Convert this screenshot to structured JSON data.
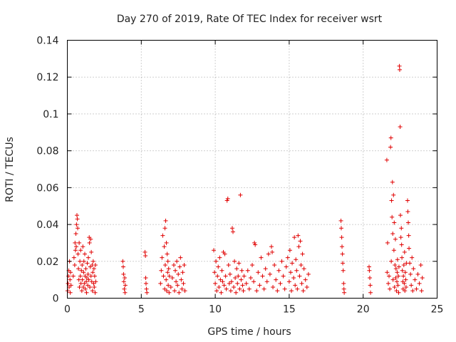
{
  "chart_data": {
    "type": "scatter",
    "title": "Day 270 of 2019, Rate Of TEC Index for receiver wsrt",
    "xlabel": "GPS time / hours",
    "ylabel": "ROTI / TECUs",
    "xlim": [
      0,
      25
    ],
    "ylim": [
      0,
      0.14
    ],
    "xticks": [
      "0",
      "5",
      "10",
      "15",
      "20",
      "25"
    ],
    "yticks": [
      "0",
      "0.02",
      "0.04",
      "0.06",
      "0.08",
      "0.1",
      "0.12",
      "0.14"
    ],
    "grid": true,
    "marker": "+",
    "color": "#e00000",
    "series": [
      {
        "name": "ROTI",
        "points": [
          [
            0.02,
            0.004
          ],
          [
            0.05,
            0.008
          ],
          [
            0.08,
            0.012
          ],
          [
            0.1,
            0.015
          ],
          [
            0.12,
            0.006
          ],
          [
            0.15,
            0.02
          ],
          [
            0.18,
            0.01
          ],
          [
            0.2,
            0.003
          ],
          [
            0.22,
            0.014
          ],
          [
            0.25,
            0.007
          ],
          [
            0.4,
            0.012
          ],
          [
            0.45,
            0.022
          ],
          [
            0.5,
            0.018
          ],
          [
            0.52,
            0.03
          ],
          [
            0.55,
            0.026
          ],
          [
            0.58,
            0.035
          ],
          [
            0.6,
            0.028
          ],
          [
            0.62,
            0.04
          ],
          [
            0.65,
            0.045
          ],
          [
            0.68,
            0.043
          ],
          [
            0.7,
            0.038
          ],
          [
            0.72,
            0.024
          ],
          [
            0.75,
            0.016
          ],
          [
            0.78,
            0.01
          ],
          [
            0.8,
            0.03
          ],
          [
            0.82,
            0.006
          ],
          [
            0.85,
            0.02
          ],
          [
            0.88,
            0.012
          ],
          [
            0.9,
            0.026
          ],
          [
            0.92,
            0.008
          ],
          [
            0.95,
            0.015
          ],
          [
            0.98,
            0.004
          ],
          [
            1.0,
            0.018
          ],
          [
            1.02,
            0.01
          ],
          [
            1.05,
            0.028
          ],
          [
            1.08,
            0.006
          ],
          [
            1.1,
            0.014
          ],
          [
            1.12,
            0.02
          ],
          [
            1.15,
            0.008
          ],
          [
            1.18,
            0.024
          ],
          [
            1.2,
            0.012
          ],
          [
            1.22,
            0.005
          ],
          [
            1.25,
            0.016
          ],
          [
            1.28,
            0.009
          ],
          [
            1.3,
            0.003
          ],
          [
            1.32,
            0.011
          ],
          [
            1.35,
            0.019
          ],
          [
            1.38,
            0.007
          ],
          [
            1.4,
            0.013
          ],
          [
            1.42,
            0.022
          ],
          [
            1.45,
            0.01
          ],
          [
            1.48,
            0.033
          ],
          [
            1.5,
            0.03
          ],
          [
            1.52,
            0.006
          ],
          [
            1.55,
            0.017
          ],
          [
            1.58,
            0.032
          ],
          [
            1.6,
            0.012
          ],
          [
            1.62,
            0.025
          ],
          [
            1.65,
            0.009
          ],
          [
            1.68,
            0.018
          ],
          [
            1.7,
            0.004
          ],
          [
            1.72,
            0.014
          ],
          [
            1.75,
            0.02
          ],
          [
            1.78,
            0.008
          ],
          [
            1.8,
            0.016
          ],
          [
            1.82,
            0.006
          ],
          [
            1.85,
            0.012
          ],
          [
            1.88,
            0.003
          ],
          [
            1.9,
            0.018
          ],
          [
            1.92,
            0.009
          ],
          [
            3.75,
            0.02
          ],
          [
            3.78,
            0.017
          ],
          [
            3.8,
            0.013
          ],
          [
            3.82,
            0.009
          ],
          [
            3.85,
            0.005
          ],
          [
            3.88,
            0.011
          ],
          [
            3.9,
            0.003
          ],
          [
            3.92,
            0.007
          ],
          [
            5.25,
            0.025
          ],
          [
            5.28,
            0.023
          ],
          [
            5.3,
            0.011
          ],
          [
            5.32,
            0.008
          ],
          [
            5.35,
            0.005
          ],
          [
            5.38,
            0.003
          ],
          [
            6.3,
            0.008
          ],
          [
            6.35,
            0.015
          ],
          [
            6.4,
            0.022
          ],
          [
            6.45,
            0.034
          ],
          [
            6.5,
            0.012
          ],
          [
            6.55,
            0.028
          ],
          [
            6.58,
            0.005
          ],
          [
            6.6,
            0.038
          ],
          [
            6.62,
            0.018
          ],
          [
            6.65,
            0.042
          ],
          [
            6.68,
            0.01
          ],
          [
            6.7,
            0.03
          ],
          [
            6.72,
            0.004
          ],
          [
            6.75,
            0.024
          ],
          [
            6.78,
            0.014
          ],
          [
            6.8,
            0.02
          ],
          [
            6.82,
            0.007
          ],
          [
            6.85,
            0.016
          ],
          [
            6.88,
            0.003
          ],
          [
            6.9,
            0.012
          ],
          [
            7.0,
            0.006
          ],
          [
            7.1,
            0.011
          ],
          [
            7.2,
            0.018
          ],
          [
            7.25,
            0.004
          ],
          [
            7.3,
            0.015
          ],
          [
            7.35,
            0.009
          ],
          [
            7.4,
            0.02
          ],
          [
            7.45,
            0.007
          ],
          [
            7.5,
            0.013
          ],
          [
            7.55,
            0.003
          ],
          [
            7.6,
            0.017
          ],
          [
            7.65,
            0.022
          ],
          [
            7.7,
            0.01
          ],
          [
            7.75,
            0.005
          ],
          [
            7.8,
            0.014
          ],
          [
            7.85,
            0.008
          ],
          [
            7.9,
            0.018
          ],
          [
            7.95,
            0.004
          ],
          [
            9.9,
            0.026
          ],
          [
            9.95,
            0.014
          ],
          [
            10.0,
            0.008
          ],
          [
            10.05,
            0.02
          ],
          [
            10.1,
            0.004
          ],
          [
            10.15,
            0.012
          ],
          [
            10.2,
            0.017
          ],
          [
            10.25,
            0.006
          ],
          [
            10.3,
            0.022
          ],
          [
            10.35,
            0.01
          ],
          [
            10.4,
            0.003
          ],
          [
            10.45,
            0.015
          ],
          [
            10.5,
            0.009
          ],
          [
            10.55,
            0.025
          ],
          [
            10.6,
            0.007
          ],
          [
            10.65,
            0.024
          ],
          [
            10.7,
            0.012
          ],
          [
            10.75,
            0.005
          ],
          [
            10.8,
            0.053
          ],
          [
            10.85,
            0.054
          ],
          [
            10.9,
            0.018
          ],
          [
            10.95,
            0.008
          ],
          [
            11.0,
            0.013
          ],
          [
            11.05,
            0.004
          ],
          [
            11.1,
            0.009
          ],
          [
            11.15,
            0.038
          ],
          [
            11.2,
            0.036
          ],
          [
            11.25,
            0.006
          ],
          [
            11.3,
            0.02
          ],
          [
            11.35,
            0.011
          ],
          [
            11.4,
            0.003
          ],
          [
            11.45,
            0.016
          ],
          [
            11.5,
            0.008
          ],
          [
            11.55,
            0.012
          ],
          [
            11.6,
            0.019
          ],
          [
            11.65,
            0.005
          ],
          [
            11.7,
            0.056
          ],
          [
            11.75,
            0.01
          ],
          [
            11.8,
            0.015
          ],
          [
            11.85,
            0.007
          ],
          [
            11.9,
            0.004
          ],
          [
            11.95,
            0.012
          ],
          [
            12.1,
            0.008
          ],
          [
            12.2,
            0.015
          ],
          [
            12.3,
            0.005
          ],
          [
            12.4,
            0.011
          ],
          [
            12.5,
            0.018
          ],
          [
            12.6,
            0.009
          ],
          [
            12.65,
            0.03
          ],
          [
            12.7,
            0.029
          ],
          [
            12.8,
            0.004
          ],
          [
            12.9,
            0.014
          ],
          [
            13.0,
            0.007
          ],
          [
            13.1,
            0.022
          ],
          [
            13.2,
            0.012
          ],
          [
            13.3,
            0.005
          ],
          [
            13.4,
            0.016
          ],
          [
            13.5,
            0.009
          ],
          [
            13.6,
            0.024
          ],
          [
            13.7,
            0.013
          ],
          [
            13.8,
            0.028
          ],
          [
            13.85,
            0.025
          ],
          [
            13.9,
            0.006
          ],
          [
            14.0,
            0.018
          ],
          [
            14.1,
            0.01
          ],
          [
            14.2,
            0.004
          ],
          [
            14.3,
            0.015
          ],
          [
            14.4,
            0.008
          ],
          [
            14.5,
            0.02
          ],
          [
            14.6,
            0.012
          ],
          [
            14.7,
            0.005
          ],
          [
            14.8,
            0.017
          ],
          [
            14.9,
            0.022
          ],
          [
            15.0,
            0.009
          ],
          [
            15.05,
            0.026
          ],
          [
            15.1,
            0.014
          ],
          [
            15.15,
            0.004
          ],
          [
            15.2,
            0.019
          ],
          [
            15.3,
            0.011
          ],
          [
            15.35,
            0.033
          ],
          [
            15.4,
            0.007
          ],
          [
            15.45,
            0.021
          ],
          [
            15.5,
            0.015
          ],
          [
            15.55,
            0.005
          ],
          [
            15.6,
            0.034
          ],
          [
            15.65,
            0.028
          ],
          [
            15.7,
            0.012
          ],
          [
            15.75,
            0.031
          ],
          [
            15.8,
            0.018
          ],
          [
            15.85,
            0.008
          ],
          [
            15.9,
            0.024
          ],
          [
            15.95,
            0.004
          ],
          [
            16.0,
            0.016
          ],
          [
            16.1,
            0.01
          ],
          [
            16.2,
            0.006
          ],
          [
            16.3,
            0.013
          ],
          [
            18.5,
            0.042
          ],
          [
            18.52,
            0.038
          ],
          [
            18.55,
            0.033
          ],
          [
            18.57,
            0.028
          ],
          [
            18.6,
            0.024
          ],
          [
            18.62,
            0.019
          ],
          [
            18.65,
            0.015
          ],
          [
            18.68,
            0.008
          ],
          [
            18.7,
            0.005
          ],
          [
            18.72,
            0.003
          ],
          [
            20.4,
            0.017
          ],
          [
            20.42,
            0.015
          ],
          [
            20.45,
            0.011
          ],
          [
            20.48,
            0.007
          ],
          [
            20.5,
            0.003
          ],
          [
            21.6,
            0.075
          ],
          [
            21.62,
            0.014
          ],
          [
            21.65,
            0.03
          ],
          [
            21.7,
            0.008
          ],
          [
            21.75,
            0.012
          ],
          [
            21.8,
            0.005
          ],
          [
            21.85,
            0.082
          ],
          [
            21.88,
            0.087
          ],
          [
            21.9,
            0.02
          ],
          [
            21.92,
            0.053
          ],
          [
            21.95,
            0.044
          ],
          [
            21.98,
            0.063
          ],
          [
            22.0,
            0.035
          ],
          [
            22.02,
            0.01
          ],
          [
            22.05,
            0.056
          ],
          [
            22.08,
            0.026
          ],
          [
            22.1,
            0.041
          ],
          [
            22.12,
            0.006
          ],
          [
            22.15,
            0.018
          ],
          [
            22.18,
            0.032
          ],
          [
            22.2,
            0.011
          ],
          [
            22.22,
            0.016
          ],
          [
            22.25,
            0.004
          ],
          [
            22.28,
            0.009
          ],
          [
            22.3,
            0.014
          ],
          [
            22.32,
            0.021
          ],
          [
            22.35,
            0.007
          ],
          [
            22.38,
            0.012
          ],
          [
            22.4,
            0.003
          ],
          [
            22.42,
            0.017
          ],
          [
            22.45,
            0.126
          ],
          [
            22.47,
            0.124
          ],
          [
            22.5,
            0.093
          ],
          [
            22.52,
            0.045
          ],
          [
            22.55,
            0.033
          ],
          [
            22.58,
            0.038
          ],
          [
            22.6,
            0.029
          ],
          [
            22.62,
            0.022
          ],
          [
            22.65,
            0.015
          ],
          [
            22.68,
            0.009
          ],
          [
            22.7,
            0.005
          ],
          [
            22.72,
            0.012
          ],
          [
            22.75,
            0.018
          ],
          [
            22.78,
            0.008
          ],
          [
            22.8,
            0.025
          ],
          [
            22.82,
            0.004
          ],
          [
            22.85,
            0.014
          ],
          [
            22.88,
            0.01
          ],
          [
            22.9,
            0.006
          ],
          [
            22.92,
            0.019
          ],
          [
            23.0,
            0.053
          ],
          [
            23.02,
            0.047
          ],
          [
            23.05,
            0.041
          ],
          [
            23.08,
            0.034
          ],
          [
            23.1,
            0.027
          ],
          [
            23.15,
            0.019
          ],
          [
            23.2,
            0.013
          ],
          [
            23.25,
            0.007
          ],
          [
            23.3,
            0.022
          ],
          [
            23.35,
            0.004
          ],
          [
            23.4,
            0.016
          ],
          [
            23.5,
            0.01
          ],
          [
            23.6,
            0.005
          ],
          [
            23.7,
            0.013
          ],
          [
            23.8,
            0.008
          ],
          [
            23.9,
            0.018
          ],
          [
            23.95,
            0.004
          ],
          [
            24.0,
            0.011
          ]
        ]
      }
    ]
  }
}
